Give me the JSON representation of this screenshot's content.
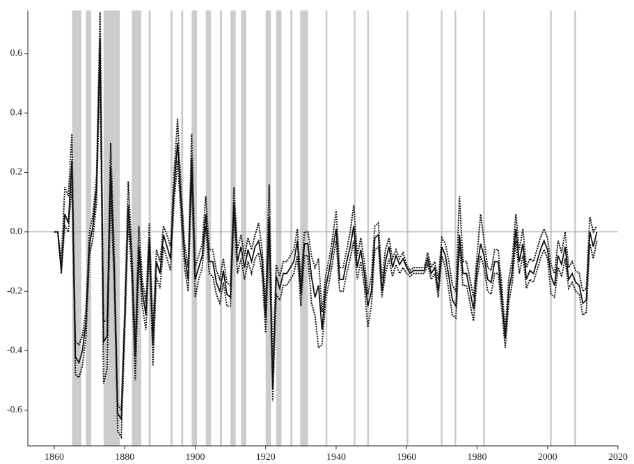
{
  "chart_data": {
    "type": "line",
    "x": [
      1860,
      1861,
      1862,
      1863,
      1864,
      1865,
      1866,
      1867,
      1868,
      1869,
      1870,
      1871,
      1872,
      1873,
      1874,
      1875,
      1876,
      1877,
      1878,
      1879,
      1880,
      1881,
      1882,
      1883,
      1884,
      1885,
      1886,
      1887,
      1888,
      1889,
      1890,
      1891,
      1892,
      1893,
      1894,
      1895,
      1896,
      1897,
      1898,
      1899,
      1900,
      1901,
      1902,
      1903,
      1904,
      1905,
      1906,
      1907,
      1908,
      1909,
      1910,
      1911,
      1912,
      1913,
      1914,
      1915,
      1916,
      1917,
      1918,
      1919,
      1920,
      1921,
      1922,
      1923,
      1924,
      1925,
      1926,
      1927,
      1928,
      1929,
      1930,
      1931,
      1932,
      1933,
      1934,
      1935,
      1936,
      1937,
      1938,
      1939,
      1940,
      1941,
      1942,
      1943,
      1944,
      1945,
      1946,
      1947,
      1948,
      1949,
      1950,
      1951,
      1952,
      1953,
      1954,
      1955,
      1956,
      1957,
      1958,
      1959,
      1960,
      1961,
      1962,
      1963,
      1964,
      1965,
      1966,
      1967,
      1968,
      1969,
      1970,
      1971,
      1972,
      1973,
      1974,
      1975,
      1976,
      1977,
      1978,
      1979,
      1980,
      1981,
      1982,
      1983,
      1984,
      1985,
      1986,
      1987,
      1988,
      1989,
      1990,
      1991,
      1992,
      1993,
      1994,
      1995,
      1996,
      1997,
      1998,
      1999,
      2000,
      2001,
      2002,
      2003,
      2004,
      2005,
      2006,
      2007,
      2008,
      2009,
      2010,
      2011,
      2012,
      2013,
      2014
    ],
    "series": [
      {
        "color": "#111111",
        "style": "solid",
        "values": [
          0,
          0,
          -0.13,
          0.06,
          0.03,
          0.24,
          -0.42,
          -0.44,
          -0.4,
          -0.3,
          -0.04,
          0.02,
          0.15,
          0.65,
          -0.37,
          -0.35,
          0.22,
          -0.12,
          -0.61,
          -0.63,
          -0.3,
          0.09,
          -0.1,
          -0.42,
          -0.05,
          -0.2,
          -0.28,
          -0.02,
          -0.38,
          -0.1,
          -0.14,
          -0.01,
          -0.05,
          -0.09,
          0.15,
          0.3,
          0.1,
          -0.08,
          -0.16,
          0.25,
          -0.16,
          -0.12,
          -0.08,
          0.06,
          -0.1,
          -0.1,
          -0.17,
          -0.2,
          -0.13,
          -0.21,
          -0.22,
          0.1,
          -0.1,
          -0.05,
          -0.12,
          -0.06,
          -0.1,
          -0.05,
          -0.03,
          -0.1,
          -0.29,
          0.05,
          -0.53,
          -0.15,
          -0.19,
          -0.14,
          -0.14,
          -0.12,
          -0.1,
          -0.03,
          -0.21,
          -0.04,
          -0.04,
          -0.15,
          -0.22,
          -0.18,
          -0.33,
          -0.19,
          -0.13,
          -0.06,
          0.01,
          -0.16,
          -0.16,
          -0.1,
          -0.05,
          0.02,
          -0.12,
          -0.06,
          -0.14,
          -0.25,
          -0.2,
          -0.02,
          -0.01,
          -0.2,
          -0.1,
          -0.05,
          -0.12,
          -0.08,
          -0.11,
          -0.09,
          -0.12,
          -0.14,
          -0.13,
          -0.13,
          -0.13,
          -0.13,
          -0.09,
          -0.14,
          -0.12,
          -0.2,
          -0.05,
          -0.08,
          -0.15,
          -0.23,
          -0.25,
          -0.01,
          -0.14,
          -0.14,
          -0.2,
          -0.26,
          -0.12,
          -0.04,
          -0.08,
          -0.16,
          -0.17,
          -0.1,
          -0.1,
          -0.22,
          -0.36,
          -0.2,
          -0.13,
          0.01,
          -0.1,
          -0.04,
          -0.16,
          -0.13,
          -0.14,
          -0.1,
          -0.06,
          -0.03,
          -0.06,
          -0.15,
          -0.18,
          -0.08,
          -0.11,
          -0.05,
          -0.16,
          -0.14,
          -0.17,
          -0.18,
          -0.24,
          -0.23,
          0.0,
          -0.05,
          0.0
        ]
      },
      {
        "color": "#111111",
        "style": "dotted",
        "values": [
          0,
          0,
          -0.1,
          0.15,
          0.12,
          0.33,
          -0.37,
          -0.38,
          -0.35,
          -0.26,
          0.0,
          0.06,
          0.19,
          0.74,
          -0.3,
          -0.3,
          0.3,
          -0.06,
          -0.58,
          -0.6,
          -0.26,
          0.17,
          -0.06,
          -0.38,
          0.02,
          -0.16,
          -0.24,
          0.03,
          -0.33,
          -0.06,
          -0.1,
          0.02,
          -0.01,
          -0.05,
          0.2,
          0.38,
          0.14,
          -0.04,
          -0.12,
          0.33,
          -0.12,
          -0.08,
          -0.04,
          0.12,
          -0.06,
          -0.06,
          -0.13,
          -0.16,
          -0.09,
          -0.17,
          -0.18,
          0.15,
          -0.06,
          -0.01,
          -0.08,
          -0.02,
          -0.06,
          -0.01,
          0.03,
          -0.06,
          -0.24,
          0.16,
          -0.45,
          -0.11,
          -0.15,
          -0.1,
          -0.1,
          -0.08,
          -0.06,
          0.01,
          -0.17,
          0.0,
          0.0,
          -0.08,
          -0.12,
          -0.09,
          -0.27,
          -0.15,
          -0.09,
          -0.02,
          0.07,
          -0.12,
          -0.12,
          -0.06,
          0.0,
          0.09,
          -0.08,
          -0.02,
          -0.1,
          -0.21,
          -0.15,
          0.02,
          0.03,
          -0.16,
          -0.06,
          -0.02,
          -0.09,
          -0.06,
          -0.09,
          -0.07,
          -0.11,
          -0.13,
          -0.12,
          -0.12,
          -0.12,
          -0.12,
          -0.07,
          -0.12,
          -0.1,
          -0.16,
          -0.02,
          -0.04,
          -0.1,
          -0.18,
          -0.2,
          0.12,
          -0.1,
          -0.1,
          -0.16,
          -0.22,
          -0.08,
          0.06,
          -0.03,
          -0.12,
          -0.13,
          -0.06,
          -0.06,
          -0.18,
          -0.33,
          -0.16,
          -0.09,
          0.06,
          -0.06,
          0.01,
          -0.12,
          -0.09,
          -0.1,
          -0.06,
          -0.02,
          0.01,
          -0.02,
          -0.11,
          -0.14,
          -0.03,
          -0.07,
          0.0,
          -0.12,
          -0.1,
          -0.13,
          -0.14,
          -0.2,
          -0.19,
          0.05,
          0.0,
          0.02
        ]
      },
      {
        "color": "#111111",
        "style": "dotted",
        "values": [
          0,
          0,
          -0.14,
          0.02,
          0.0,
          0.17,
          -0.48,
          -0.49,
          -0.45,
          -0.35,
          -0.08,
          -0.02,
          0.1,
          0.57,
          -0.51,
          -0.46,
          0.14,
          -0.17,
          -0.67,
          -0.69,
          -0.35,
          0.04,
          -0.15,
          -0.5,
          -0.1,
          -0.25,
          -0.33,
          -0.06,
          -0.45,
          -0.15,
          -0.19,
          -0.05,
          -0.09,
          -0.13,
          0.1,
          0.24,
          0.05,
          -0.12,
          -0.2,
          0.18,
          -0.22,
          -0.16,
          -0.12,
          0.02,
          -0.14,
          -0.15,
          -0.21,
          -0.24,
          -0.17,
          -0.25,
          -0.25,
          0.05,
          -0.14,
          -0.09,
          -0.16,
          -0.1,
          -0.14,
          -0.09,
          -0.07,
          -0.14,
          -0.34,
          -0.01,
          -0.57,
          -0.21,
          -0.23,
          -0.18,
          -0.18,
          -0.16,
          -0.14,
          -0.08,
          -0.25,
          -0.08,
          -0.08,
          -0.24,
          -0.28,
          -0.39,
          -0.38,
          -0.23,
          -0.17,
          -0.1,
          -0.03,
          -0.2,
          -0.2,
          -0.14,
          -0.09,
          -0.03,
          -0.16,
          -0.1,
          -0.18,
          -0.32,
          -0.25,
          -0.06,
          -0.05,
          -0.22,
          -0.14,
          -0.09,
          -0.15,
          -0.11,
          -0.14,
          -0.12,
          -0.14,
          -0.15,
          -0.14,
          -0.14,
          -0.14,
          -0.14,
          -0.11,
          -0.16,
          -0.14,
          -0.22,
          -0.08,
          -0.12,
          -0.2,
          -0.28,
          -0.29,
          -0.05,
          -0.18,
          -0.18,
          -0.24,
          -0.3,
          -0.16,
          -0.08,
          -0.12,
          -0.2,
          -0.21,
          -0.14,
          -0.14,
          -0.26,
          -0.39,
          -0.24,
          -0.17,
          -0.03,
          -0.14,
          -0.08,
          -0.19,
          -0.16,
          -0.17,
          -0.13,
          -0.09,
          -0.06,
          -0.09,
          -0.21,
          -0.22,
          -0.12,
          -0.15,
          -0.09,
          -0.19,
          -0.17,
          -0.2,
          -0.21,
          -0.28,
          -0.27,
          -0.04,
          -0.09,
          -0.03
        ]
      }
    ],
    "bands": [
      [
        1865.1,
        1867.7
      ],
      [
        1869,
        1870.5
      ],
      [
        1874,
        1878.6
      ],
      [
        1882,
        1884.7
      ],
      [
        1886.8,
        1887.4
      ],
      [
        1893,
        1893.6
      ],
      [
        1896,
        1896.6
      ],
      [
        1899,
        1900.5
      ],
      [
        1903,
        1904.5
      ],
      [
        1907,
        1907.6
      ],
      [
        1910,
        1911.5
      ],
      [
        1913,
        1914.5
      ],
      [
        1920,
        1921.5
      ],
      [
        1923,
        1924.5
      ],
      [
        1927,
        1927.6
      ],
      [
        1929.8,
        1932
      ],
      [
        1937,
        1937.5
      ],
      [
        1945,
        1945.5
      ],
      [
        1948.8,
        1949.3
      ],
      [
        1960,
        1960.5
      ],
      [
        1969.7,
        1970.2
      ],
      [
        1973.6,
        1974.1
      ],
      [
        1981.7,
        1982.2
      ],
      [
        2000.7,
        2001.2
      ],
      [
        2007.6,
        2008.1
      ]
    ],
    "band_color": "#cccccc",
    "hline": 0,
    "xlim": [
      1852.5,
      2020
    ],
    "ylim": [
      -0.72,
      0.745
    ],
    "xticks": [
      1860,
      1880,
      1900,
      1920,
      1940,
      1960,
      1980,
      2000,
      2020
    ],
    "yticks": [
      -0.6,
      -0.4,
      -0.2,
      {
        "value": 0,
        "label": "0.0"
      },
      0.2,
      0.4,
      0.6
    ]
  }
}
